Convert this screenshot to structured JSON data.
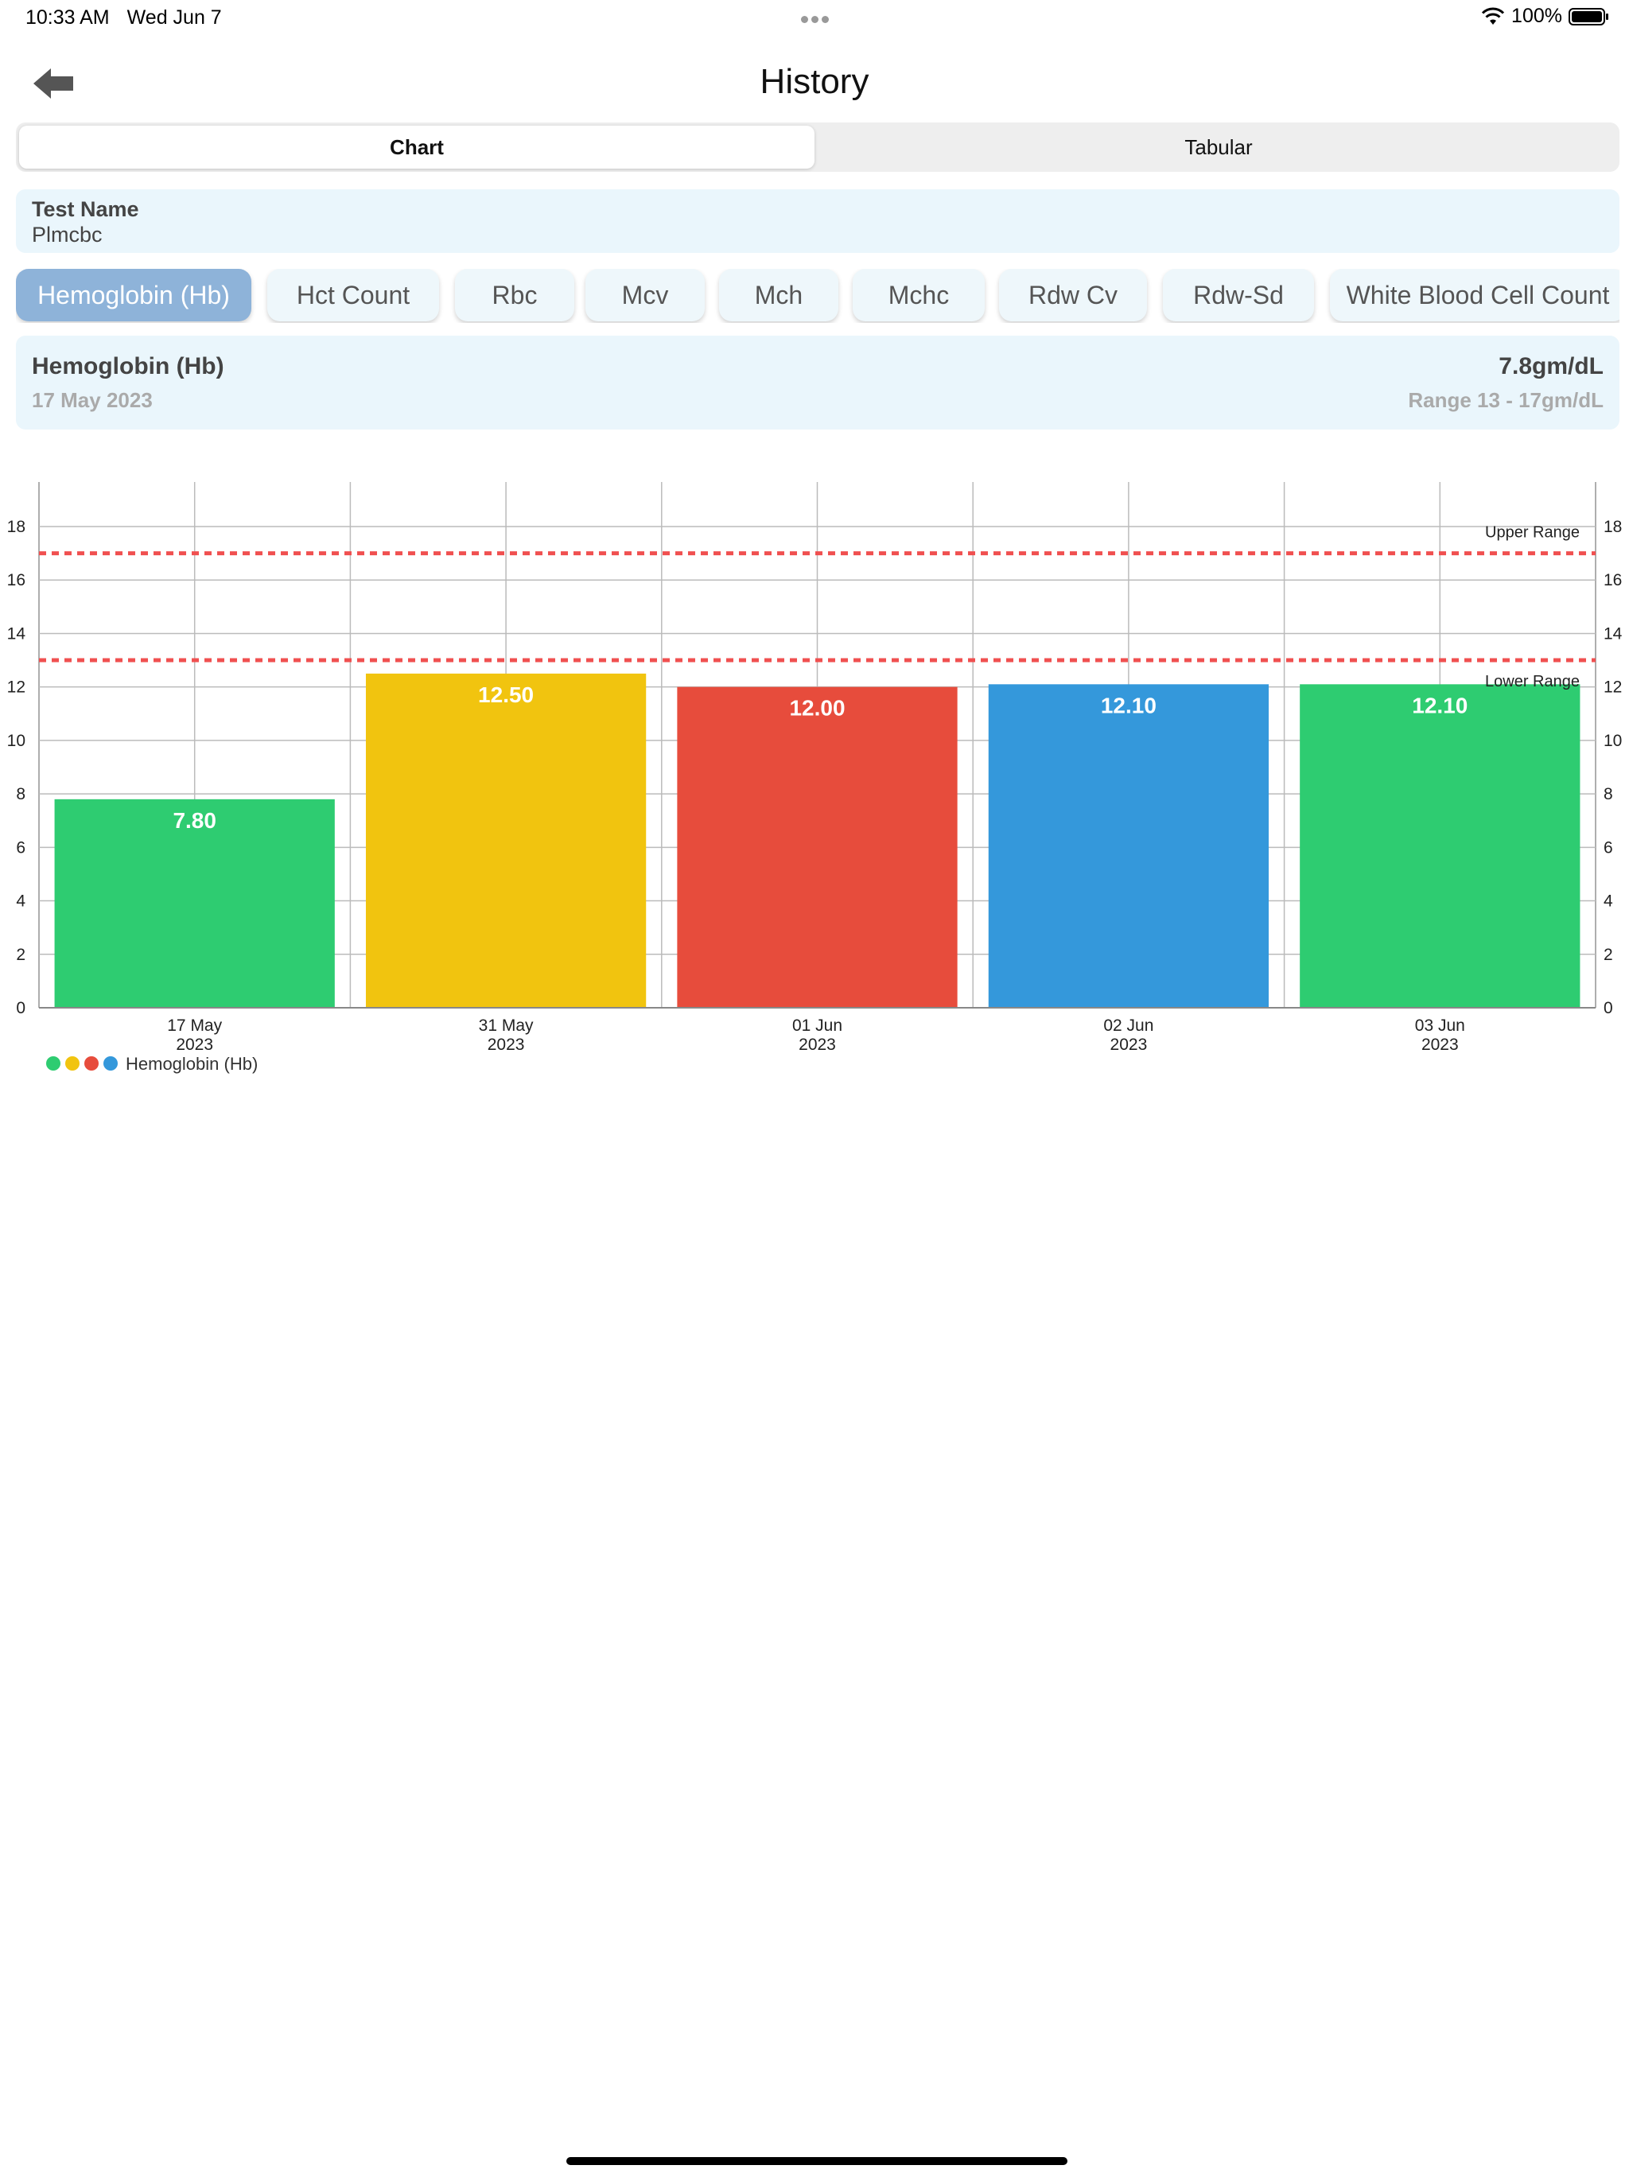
{
  "status": {
    "time": "10:33 AM",
    "date": "Wed Jun 7",
    "battery": "100%"
  },
  "nav": {
    "title": "History"
  },
  "segments": [
    {
      "label": "Chart"
    },
    {
      "label": "Tabular"
    }
  ],
  "test": {
    "label": "Test Name",
    "value": "Plmcbc"
  },
  "chips": [
    {
      "label": "Hemoglobin (Hb)"
    },
    {
      "label": "Hct Count"
    },
    {
      "label": "Rbc"
    },
    {
      "label": "Mcv"
    },
    {
      "label": "Mch"
    },
    {
      "label": "Mchc"
    },
    {
      "label": "Rdw Cv"
    },
    {
      "label": "Rdw-Sd"
    },
    {
      "label": "White Blood Cell Count"
    }
  ],
  "detail": {
    "name": "Hemoglobin (Hb)",
    "date": "17 May 2023",
    "value": "7.8gm/dL",
    "range": "Range 13 - 17gm/dL"
  },
  "chart_data": {
    "type": "bar",
    "categories": [
      {
        "line1": "17 May",
        "line2": "2023"
      },
      {
        "line1": "31 May",
        "line2": "2023"
      },
      {
        "line1": "01 Jun",
        "line2": "2023"
      },
      {
        "line1": "02 Jun",
        "line2": "2023"
      },
      {
        "line1": "03 Jun",
        "line2": "2023"
      }
    ],
    "series": [
      {
        "name": "Hemoglobin (Hb)",
        "values": [
          7.8,
          12.5,
          12.0,
          12.1,
          12.1
        ]
      }
    ],
    "value_labels": [
      "7.80",
      "12.50",
      "12.00",
      "12.10",
      "12.10"
    ],
    "bar_colors": [
      "#2ecc71",
      "#f1c40f",
      "#e74c3c",
      "#3498db",
      "#2ecc71"
    ],
    "legend_colors": [
      "#2ecc71",
      "#f1c40f",
      "#e74c3c",
      "#3498db"
    ],
    "ylim": [
      0,
      18
    ],
    "yticks": [
      0,
      2,
      4,
      6,
      8,
      10,
      12,
      14,
      16,
      18
    ],
    "reference_lines": [
      {
        "label": "Upper Range",
        "value": 17,
        "color": "#f05050"
      },
      {
        "label": "Lower Range",
        "value": 13,
        "color": "#f05050"
      }
    ],
    "grid": true,
    "legend_position": "bottom-left"
  }
}
